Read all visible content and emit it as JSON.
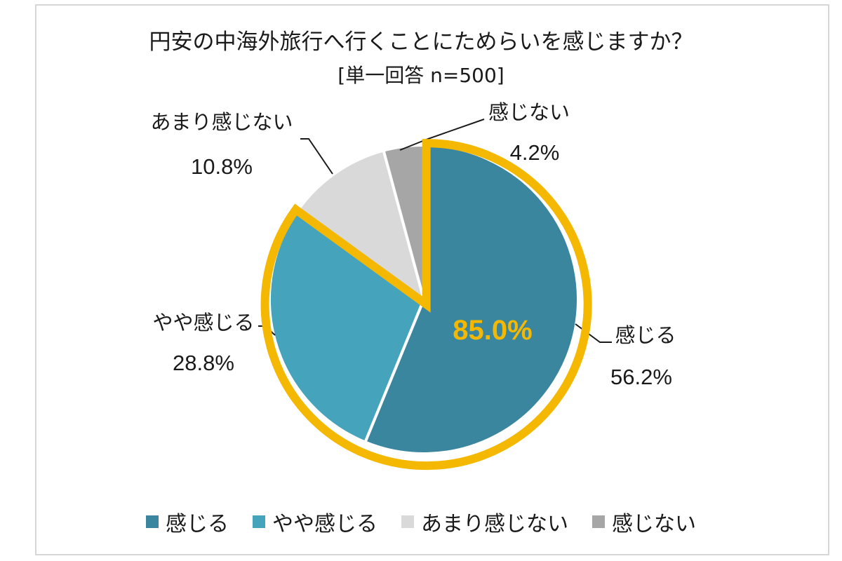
{
  "chart_data": {
    "type": "pie",
    "title": "円安の中海外旅行へ行くことにためらいを感じますか？",
    "subtitle": "[単一回答 n=500]",
    "categories": [
      "感じる",
      "やや感じる",
      "あまり感じない",
      "感じない"
    ],
    "values": [
      56.2,
      28.8,
      10.8,
      4.2
    ],
    "value_labels": [
      "56.2%",
      "28.8%",
      "10.8%",
      "4.2%"
    ],
    "colors": [
      "#3a869e",
      "#45a3bb",
      "#d9d9d9",
      "#a6a6a6"
    ],
    "highlight": {
      "categories": [
        "感じる",
        "やや感じる"
      ],
      "total_label": "85.0%",
      "color": "#f5b800"
    },
    "legend_position": "bottom"
  }
}
